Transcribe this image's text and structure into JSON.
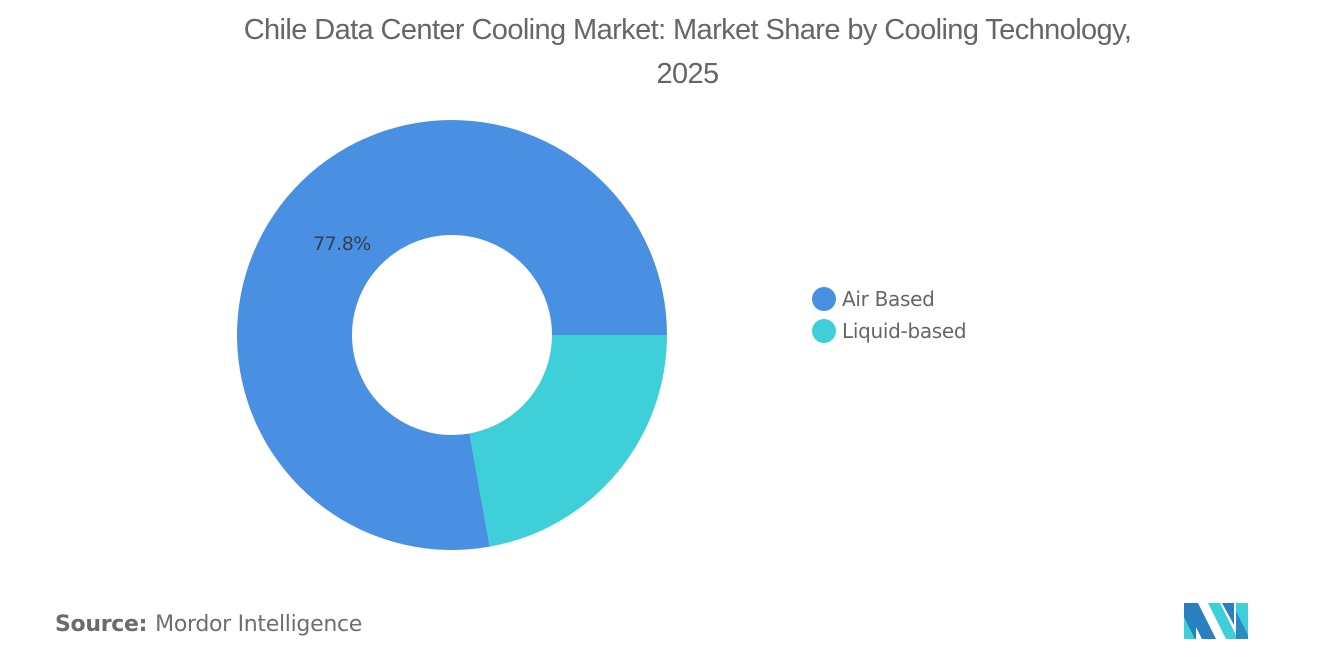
{
  "title": {
    "line1": "Chile Data Center Cooling Market: Market Share by Cooling Technology,",
    "line2": "2025"
  },
  "chart_data": {
    "type": "pie",
    "variant": "donut",
    "title": "Chile Data Center Cooling Market: Market Share by Cooling Technology, 2025",
    "categories": [
      "Air Based",
      "Liquid-based"
    ],
    "values": [
      77.8,
      22.2
    ],
    "unit": "%",
    "colors": [
      "#4a90e2",
      "#3ecfd8"
    ],
    "data_labels": [
      {
        "category": "Air Based",
        "text": "77.8%"
      }
    ],
    "legend_position": "right"
  },
  "legend": {
    "items": [
      {
        "label": "Air Based",
        "color": "#4a90e2"
      },
      {
        "label": "Liquid-based",
        "color": "#3ecfd8"
      }
    ]
  },
  "labels": {
    "air_based_pct": "77.8%"
  },
  "source": {
    "key": "Source:",
    "value": "Mordor Intelligence"
  },
  "logo": {
    "icon": "mordor-intelligence-logo-icon",
    "colors": [
      "#2a7fc0",
      "#3ecfd8"
    ]
  }
}
